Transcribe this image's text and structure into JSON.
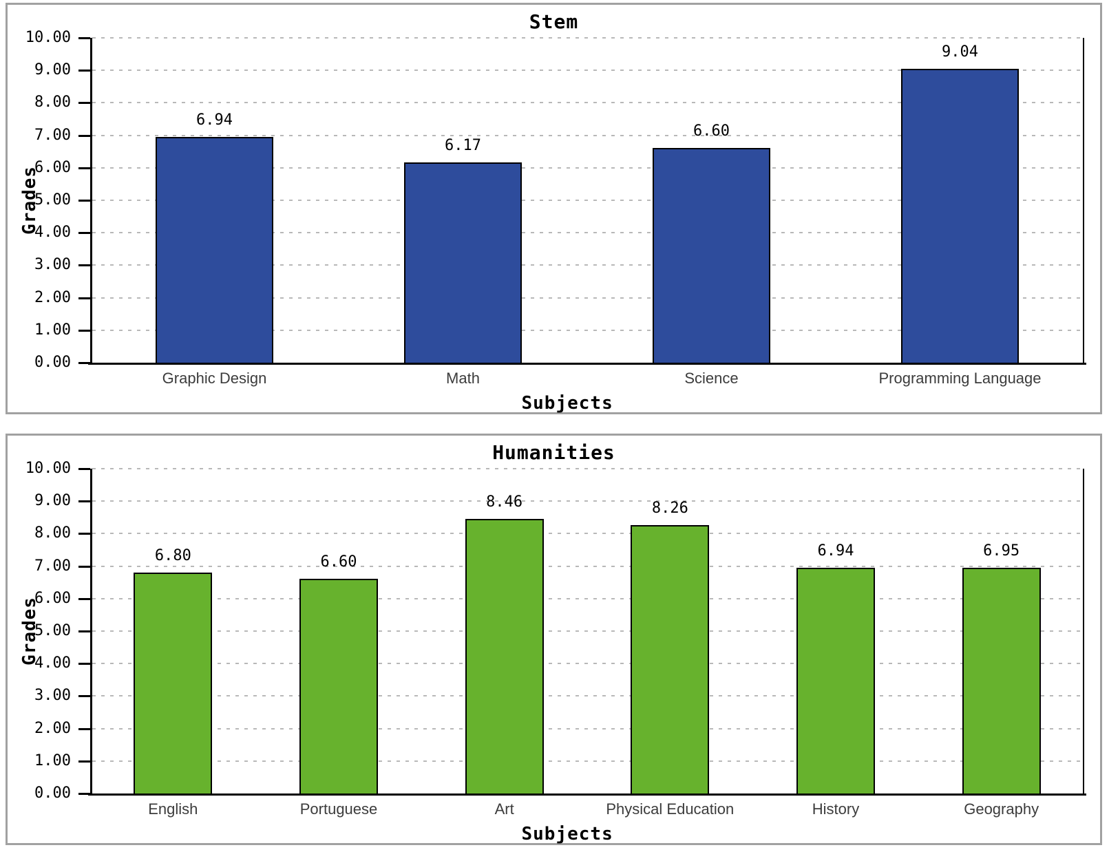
{
  "page": {
    "background": "#ffffff",
    "panel_border_color": "#a1a1a1",
    "gridline_color": "#b8b8b8",
    "axis_color": "#000000"
  },
  "chart_data": [
    {
      "type": "bar",
      "title": "Stem",
      "xlabel": "Subjects",
      "ylabel": "Grades",
      "categories": [
        "Graphic Design",
        "Math",
        "Science",
        "Programming Language"
      ],
      "values": [
        6.94,
        6.17,
        6.6,
        9.04
      ],
      "value_labels": [
        "6.94",
        "6.17",
        "6.60",
        "9.04"
      ],
      "bar_color": "#2E4C9C",
      "ylim": [
        0,
        10
      ],
      "ytick_step": 1,
      "ytick_labels": [
        "10.00",
        "9.00",
        "8.00",
        "7.00",
        "6.00",
        "5.00",
        "4.00",
        "3.00",
        "2.00",
        "1.00",
        "0.00"
      ],
      "grid": "horizontal-dotted",
      "legend": "none"
    },
    {
      "type": "bar",
      "title": "Humanities",
      "xlabel": "Subjects",
      "ylabel": "Grades",
      "categories": [
        "English",
        "Portuguese",
        "Art",
        "Physical Education",
        "History",
        "Geography"
      ],
      "values": [
        6.8,
        6.6,
        8.46,
        8.26,
        6.94,
        6.95
      ],
      "value_labels": [
        "6.80",
        "6.60",
        "8.46",
        "8.26",
        "6.94",
        "6.95"
      ],
      "bar_color": "#67B22D",
      "ylim": [
        0,
        10
      ],
      "ytick_step": 1,
      "ytick_labels": [
        "10.00",
        "9.00",
        "8.00",
        "7.00",
        "6.00",
        "5.00",
        "4.00",
        "3.00",
        "2.00",
        "1.00",
        "0.00"
      ],
      "grid": "horizontal-dotted",
      "legend": "none"
    }
  ]
}
